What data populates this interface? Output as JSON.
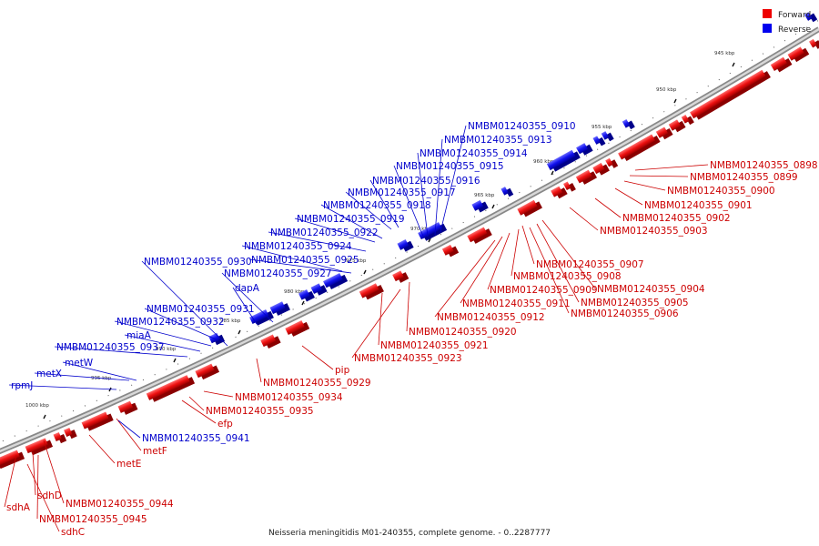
{
  "caption": "Neisseria meningitidis M01-240355, complete genome. - 0..2287777",
  "legend": [
    {
      "label": "Forward",
      "color": "#ee0000"
    },
    {
      "label": "Reverse",
      "color": "#0000ee"
    }
  ],
  "colors": {
    "forward": "#ee1111",
    "reverse": "#1111ee",
    "axis": "#777777"
  },
  "ticks": [
    "945 kbp",
    "950 kbp",
    "955 kbp",
    "960 kbp",
    "965 kbp",
    "970 kbp",
    "975 kbp",
    "980 kbp",
    "985 kbp",
    "990 kbp",
    "995 kbp",
    "1000 kbp"
  ],
  "forward_labels": [
    "NMBM01240355_0898",
    "NMBM01240355_0899",
    "NMBM01240355_0900",
    "NMBM01240355_0901",
    "NMBM01240355_0902",
    "NMBM01240355_0903",
    "NMBM01240355_0907",
    "NMBM01240355_0908",
    "NMBM01240355_0909",
    "NMBM01240355_0904",
    "NMBM01240355_0905",
    "NMBM01240355_0911",
    "NMBM01240355_0906",
    "NMBM01240355_0912",
    "NMBM01240355_0920",
    "NMBM01240355_0921",
    "NMBM01240355_0923",
    "pip",
    "NMBM01240355_0929",
    "NMBM01240355_0934",
    "NMBM01240355_0935",
    "efp",
    "metF",
    "metE",
    "NMBM01240355_0944",
    "sdhD",
    "NMBM01240355_0945",
    "sdhA",
    "sdhC"
  ],
  "reverse_labels": [
    "NMBM01240355_0910",
    "NMBM01240355_0913",
    "NMBM01240355_0914",
    "NMBM01240355_0915",
    "NMBM01240355_0916",
    "NMBM01240355_0917",
    "NMBM01240355_0918",
    "NMBM01240355_0919",
    "NMBM01240355_0922",
    "NMBM01240355_0924",
    "NMBM01240355_0930",
    "NMBM01240355_0925",
    "NMBM01240355_0927",
    "dapA",
    "NMBM01240355_0931",
    "NMBM01240355_0932",
    "miaA",
    "NMBM01240355_0937",
    "metW",
    "metX",
    "rpmJ",
    "NMBM01240355_0941"
  ]
}
